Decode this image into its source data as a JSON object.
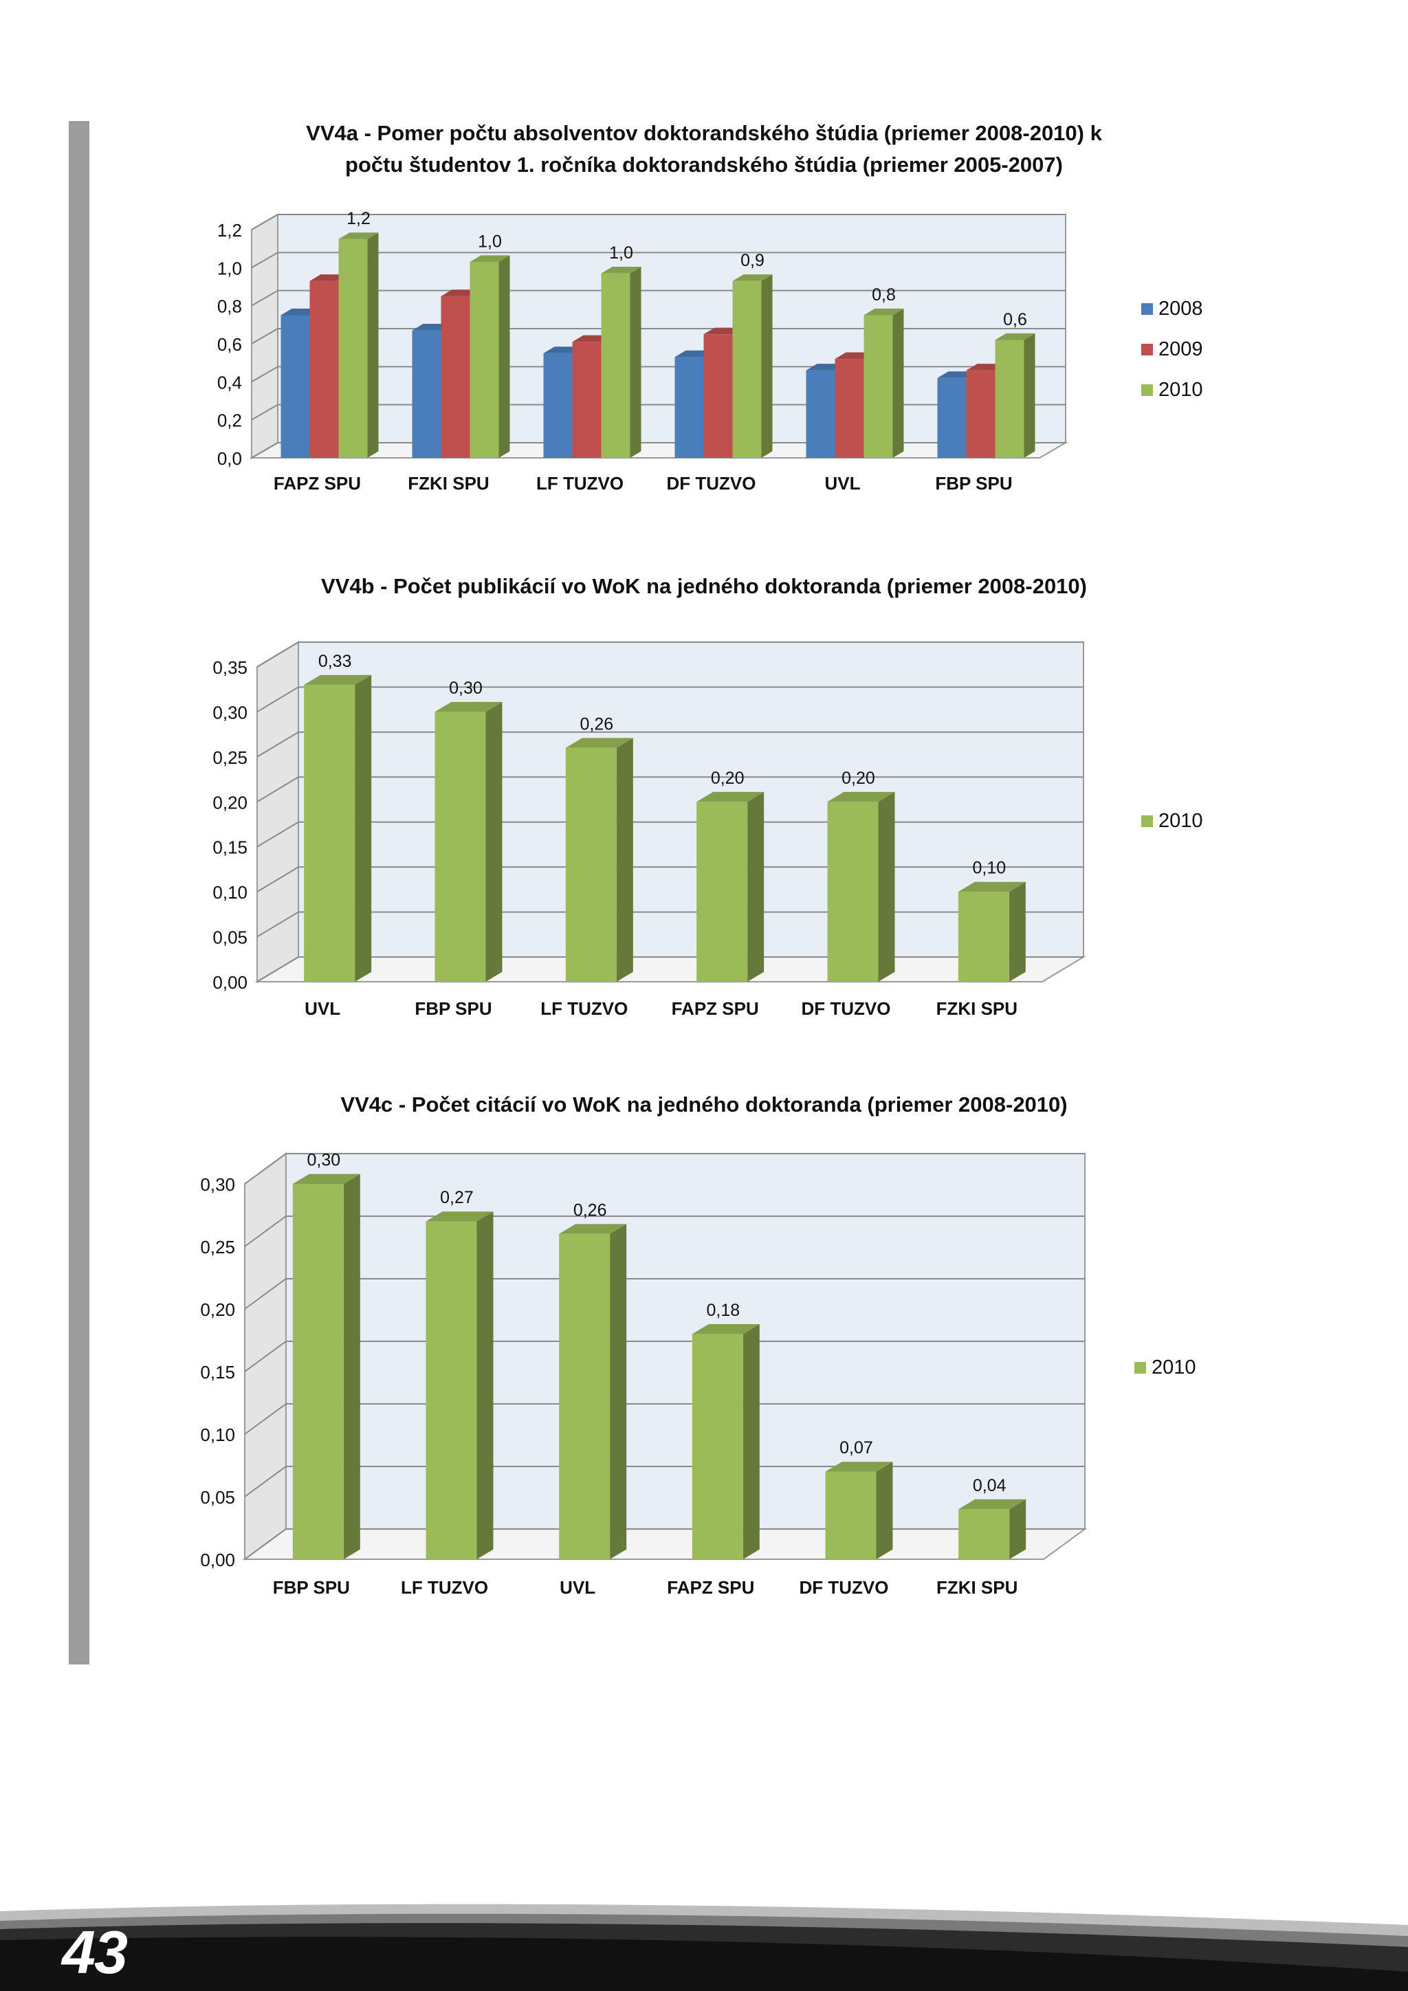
{
  "page": {
    "number": "43"
  },
  "colors": {
    "series_2008": "#4a7ebb",
    "series_2009": "#c0504d",
    "series_2010": "#9bbb59",
    "plot_back": "#e8eef6",
    "side_bar": "#9d9d9d"
  },
  "chart_data": [
    {
      "type": "bar",
      "title_line1": "VV4a - Pomer počtu absolventov doktorandského štúdia (priemer 2008-2010) k",
      "title_line2": "počtu študentov 1. ročníka doktorandského štúdia (priemer 2005-2007)",
      "categories": [
        "FAPZ SPU",
        "FZKI SPU",
        "LF  TUZVO",
        "DF TUZVO",
        "UVL",
        "FBP SPU"
      ],
      "series": [
        {
          "name": "2008",
          "values": [
            0.75,
            0.67,
            0.55,
            0.53,
            0.46,
            0.42
          ]
        },
        {
          "name": "2009",
          "values": [
            0.93,
            0.85,
            0.61,
            0.65,
            0.52,
            0.46
          ]
        },
        {
          "name": "2010",
          "values": [
            1.15,
            1.03,
            0.97,
            0.93,
            0.75,
            0.62
          ]
        }
      ],
      "data_labels": [
        "1,2",
        "1,0",
        "1,0",
        "0,9",
        "0,8",
        "0,6"
      ],
      "ylim": [
        0,
        1.2
      ],
      "yticks": [
        "0,0",
        "0,2",
        "0,4",
        "0,6",
        "0,8",
        "1,0",
        "1,2"
      ],
      "legend": [
        "2008",
        "2009",
        "2010"
      ],
      "xlabel": "",
      "ylabel": ""
    },
    {
      "type": "bar",
      "title": "VV4b - Počet publikácií vo WoK na jedného doktoranda (priemer 2008-2010)",
      "categories": [
        "UVL",
        "FBP SPU",
        "LF  TUZVO",
        "FAPZ SPU",
        "DF TUZVO",
        "FZKI SPU"
      ],
      "series": [
        {
          "name": "2010",
          "values": [
            0.33,
            0.3,
            0.26,
            0.2,
            0.2,
            0.1
          ]
        }
      ],
      "data_labels": [
        "0,33",
        "0,30",
        "0,26",
        "0,20",
        "0,20",
        "0,10"
      ],
      "ylim": [
        0,
        0.35
      ],
      "yticks": [
        "0,00",
        "0,05",
        "0,10",
        "0,15",
        "0,20",
        "0,25",
        "0,30",
        "0,35"
      ],
      "legend": [
        "2010"
      ],
      "xlabel": "",
      "ylabel": ""
    },
    {
      "type": "bar",
      "title": "VV4c - Počet citácií vo WoK na jedného doktoranda (priemer 2008-2010)",
      "categories": [
        "FBP SPU",
        "LF  TUZVO",
        "UVL",
        "FAPZ SPU",
        "DF TUZVO",
        "FZKI SPU"
      ],
      "series": [
        {
          "name": "2010",
          "values": [
            0.3,
            0.27,
            0.26,
            0.18,
            0.07,
            0.04
          ]
        }
      ],
      "data_labels": [
        "0,30",
        "0,27",
        "0,26",
        "0,18",
        "0,07",
        "0,04"
      ],
      "ylim": [
        0,
        0.3
      ],
      "yticks": [
        "0,00",
        "0,05",
        "0,10",
        "0,15",
        "0,20",
        "0,25",
        "0,30"
      ],
      "legend": [
        "2010"
      ],
      "xlabel": "",
      "ylabel": ""
    }
  ]
}
